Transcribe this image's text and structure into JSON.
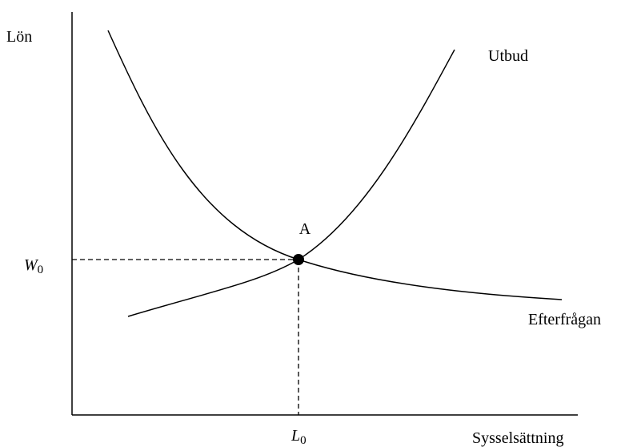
{
  "axes": {
    "y_label": "Lön",
    "x_label": "Sysselsättning"
  },
  "curves": {
    "supply": "Utbud",
    "demand": "Efterfrågan"
  },
  "equilibrium": {
    "label": "A",
    "wage": {
      "symbol": "W",
      "subscript": "0"
    },
    "employment": {
      "symbol": "L",
      "subscript": "0"
    }
  }
}
